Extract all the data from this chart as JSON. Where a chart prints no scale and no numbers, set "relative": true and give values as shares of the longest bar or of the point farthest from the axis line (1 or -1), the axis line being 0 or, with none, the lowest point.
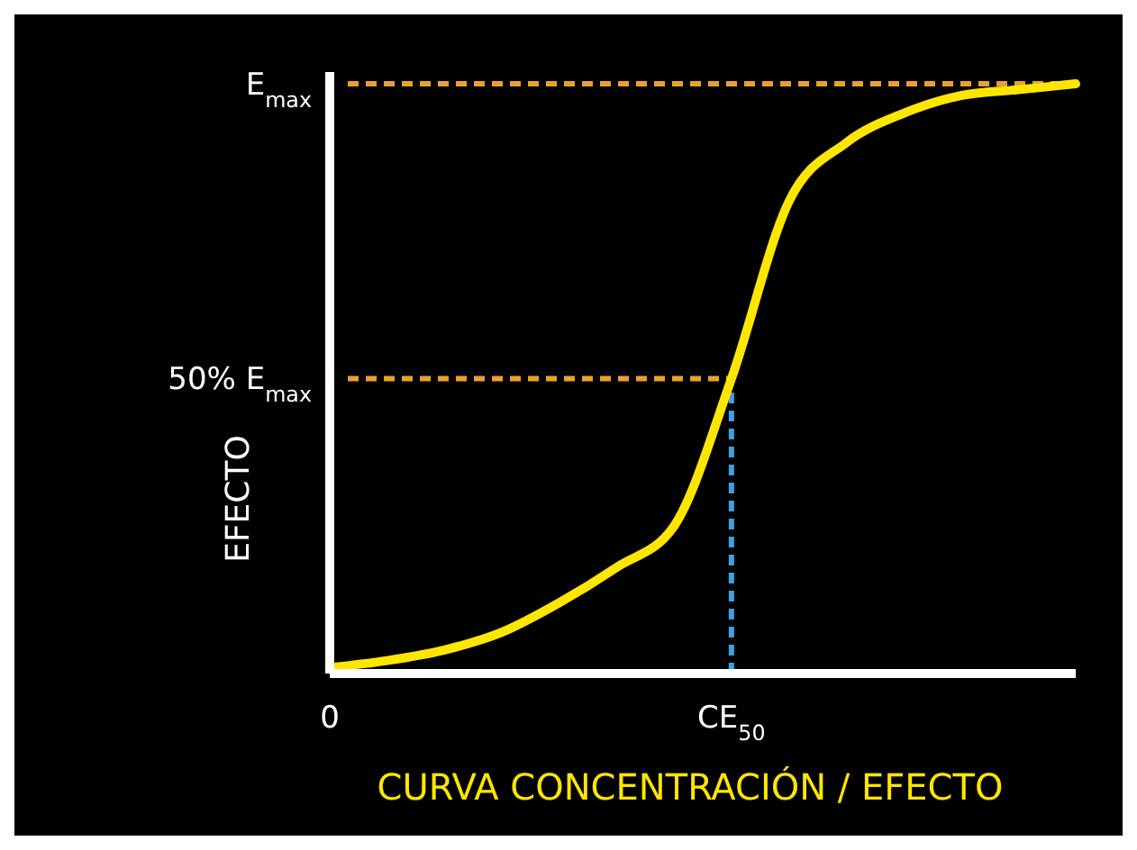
{
  "chart_data": {
    "type": "line",
    "xlabel": "CURVA CONCENTRACIÓN / EFECTO",
    "ylabel": "EFECTO",
    "relative": true,
    "categories": [
      "0",
      null,
      null,
      null,
      null,
      null,
      null,
      "CE$_{50}$",
      null,
      null,
      null,
      null,
      null,
      null
    ],
    "series": [
      {
        "color": "#ffe600",
        "values": [
          0.01,
          0.022,
          0.04,
          0.07,
          0.12,
          0.18,
          0.25,
          0.5,
          0.8,
          0.9,
          0.95,
          0.98,
          0.99,
          1
        ]
      }
    ],
    "ref_lines": [
      {
        "axis": "y",
        "value": 1,
        "label": "E$_{max}$",
        "color": "#e8a030",
        "line_style": "dashed"
      },
      {
        "axis": "y",
        "value": 0.5,
        "label": "50% E$_{max}$",
        "color": "#e8a030",
        "line_style": "dashed"
      },
      {
        "axis": "x",
        "value": "CE$_{50}$",
        "color": "#3fa0e0",
        "line_style": "dashed"
      }
    ],
    "line_style": "solid"
  }
}
